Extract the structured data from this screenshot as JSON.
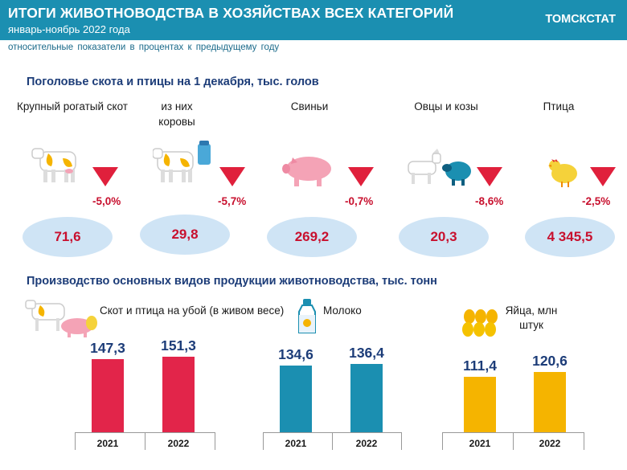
{
  "header": {
    "title": "ИТОГИ ЖИВОТНОВОДСТВА  В ХОЗЯЙСТВАХ ВСЕХ КАТЕГОРИЙ",
    "subtitle": "январь-ноябрь 2022 года",
    "brand": "ТОМСКСТАТ"
  },
  "note": "относительные показатели в процентах к предыдущему году",
  "livestock": {
    "title": "Поголовье скота и птицы на 1 декабря, тыс. голов",
    "items": [
      {
        "label": "Крупный рогатый скот",
        "pct": "-5,0%",
        "value": "71,6",
        "icon": "cow-icon"
      },
      {
        "label": "из них коровы",
        "pct": "-5,7%",
        "value": "29,8",
        "icon": "cow-milk-icon"
      },
      {
        "label": "Свиньи",
        "pct": "-0,7%",
        "value": "269,2",
        "icon": "pig-icon"
      },
      {
        "label": "Овцы и козы",
        "pct": "-8,6%",
        "value": "20,3",
        "icon": "goat-sheep-icon"
      },
      {
        "label": "Птица",
        "pct": "-2,5%",
        "value": "4 345,5",
        "icon": "chicken-icon"
      }
    ]
  },
  "production": {
    "title": "Производство основных видов продукции животноводства, тыс. тонн"
  },
  "chart_data": [
    {
      "type": "bar",
      "title": "Скот и птица на убой (в живом весе)",
      "categories": [
        "2021",
        "2022"
      ],
      "values": [
        147.3,
        151.3
      ],
      "labels": [
        "147,3",
        "151,3"
      ],
      "color": "#e2254a",
      "icon": "cow-pig-icon"
    },
    {
      "type": "bar",
      "title": "Молоко",
      "categories": [
        "2021",
        "2022"
      ],
      "values": [
        134.6,
        136.4
      ],
      "labels": [
        "134,6",
        "136,4"
      ],
      "color": "#1b8fb1",
      "icon": "milk-bottle-icon"
    },
    {
      "type": "bar",
      "title": "Яйца, млн штук",
      "categories": [
        "2021",
        "2022"
      ],
      "values": [
        111.4,
        120.6
      ],
      "labels": [
        "111,4",
        "120,6"
      ],
      "color": "#f5b400",
      "icon": "eggs-icon"
    }
  ]
}
